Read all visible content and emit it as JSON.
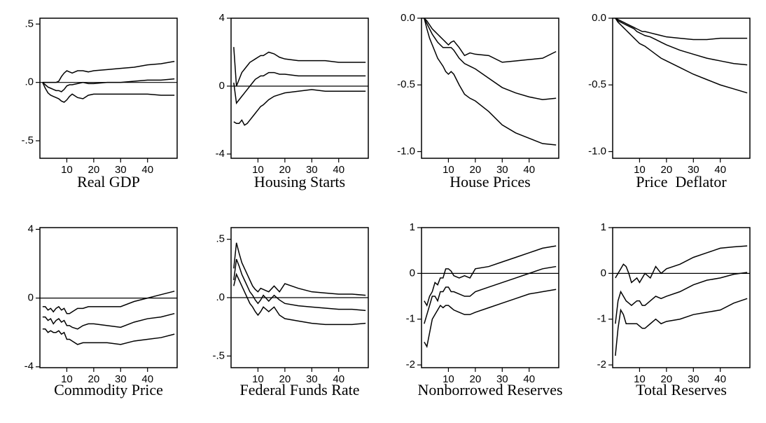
{
  "chart_data": [
    {
      "type": "line",
      "title": "Real GDP",
      "x": [
        1,
        2,
        3,
        4,
        5,
        6,
        7,
        8,
        9,
        10,
        11,
        12,
        14,
        16,
        18,
        20,
        25,
        30,
        35,
        40,
        45,
        50
      ],
      "xlim": [
        0,
        51
      ],
      "xticks": [
        10,
        20,
        30,
        40
      ],
      "ylim": [
        -0.65,
        0.55
      ],
      "yticks": [
        {
          "value": 0.5,
          "label": ".5"
        },
        {
          "value": 0,
          "label": ".0"
        },
        {
          "value": -0.5,
          "label": "-.5"
        }
      ],
      "zero_line": true,
      "series": [
        {
          "color": "#000000",
          "values": [
            0,
            0,
            0,
            0,
            0,
            0,
            0.01,
            0.05,
            0.08,
            0.1,
            0.09,
            0.08,
            0.1,
            0.1,
            0.09,
            0.1,
            0.11,
            0.12,
            0.13,
            0.15,
            0.16,
            0.18
          ]
        },
        {
          "color": "#000000",
          "values": [
            0,
            -0.02,
            -0.04,
            -0.05,
            -0.06,
            -0.07,
            -0.07,
            -0.08,
            -0.06,
            -0.03,
            -0.02,
            -0.02,
            -0.01,
            0,
            -0.01,
            -0.01,
            0,
            0,
            0.01,
            0.02,
            0.02,
            0.03
          ]
        },
        {
          "color": "#000000",
          "values": [
            0,
            -0.05,
            -0.09,
            -0.11,
            -0.12,
            -0.13,
            -0.14,
            -0.16,
            -0.17,
            -0.15,
            -0.12,
            -0.1,
            -0.13,
            -0.14,
            -0.11,
            -0.1,
            -0.1,
            -0.1,
            -0.1,
            -0.1,
            -0.11,
            -0.11
          ]
        }
      ]
    },
    {
      "type": "line",
      "title": "Housing Starts",
      "x": [
        1,
        2,
        3,
        4,
        5,
        6,
        7,
        8,
        9,
        10,
        11,
        12,
        14,
        16,
        18,
        20,
        25,
        30,
        35,
        40,
        45,
        50
      ],
      "xlim": [
        0,
        51
      ],
      "xticks": [
        10,
        20,
        30,
        40
      ],
      "ylim": [
        -4.25,
        4
      ],
      "yticks": [
        4,
        0,
        -4
      ],
      "zero_line": true,
      "series": [
        {
          "color": "#000000",
          "values": [
            2.3,
            0,
            0.4,
            0.8,
            1.0,
            1.2,
            1.4,
            1.5,
            1.6,
            1.7,
            1.8,
            1.8,
            2.0,
            1.9,
            1.7,
            1.6,
            1.5,
            1.5,
            1.5,
            1.4,
            1.4,
            1.4
          ]
        },
        {
          "color": "#000000",
          "values": [
            0.2,
            -1,
            -0.8,
            -0.6,
            -0.4,
            -0.2,
            0,
            0.2,
            0.4,
            0.5,
            0.6,
            0.6,
            0.8,
            0.8,
            0.7,
            0.7,
            0.6,
            0.6,
            0.6,
            0.6,
            0.6,
            0.6
          ]
        },
        {
          "color": "#000000",
          "values": [
            -2.1,
            -2.2,
            -2.2,
            -2.0,
            -2.3,
            -2.2,
            -2.0,
            -1.8,
            -1.6,
            -1.4,
            -1.2,
            -1.1,
            -0.8,
            -0.6,
            -0.5,
            -0.4,
            -0.3,
            -0.2,
            -0.3,
            -0.3,
            -0.3,
            -0.3
          ]
        }
      ]
    },
    {
      "type": "line",
      "title": "House Prices",
      "x": [
        1,
        2,
        3,
        4,
        5,
        6,
        7,
        8,
        9,
        10,
        11,
        12,
        14,
        16,
        18,
        20,
        25,
        30,
        35,
        40,
        45,
        50
      ],
      "xlim": [
        0,
        51
      ],
      "xticks": [
        10,
        20,
        30,
        40
      ],
      "ylim": [
        -1.05,
        0
      ],
      "yticks": [
        {
          "value": 0,
          "label": "0.0"
        },
        -0.5,
        {
          "value": -1,
          "label": "-1.0"
        }
      ],
      "zero_line": false,
      "series": [
        {
          "color": "#000000",
          "values": [
            0,
            -0.02,
            -0.05,
            -0.08,
            -0.1,
            -0.12,
            -0.14,
            -0.16,
            -0.18,
            -0.2,
            -0.18,
            -0.17,
            -0.22,
            -0.28,
            -0.26,
            -0.27,
            -0.28,
            -0.33,
            -0.32,
            -0.31,
            -0.3,
            -0.25
          ]
        },
        {
          "color": "#000000",
          "values": [
            0,
            -0.04,
            -0.08,
            -0.12,
            -0.15,
            -0.18,
            -0.2,
            -0.22,
            -0.22,
            -0.22,
            -0.22,
            -0.24,
            -0.3,
            -0.34,
            -0.36,
            -0.38,
            -0.45,
            -0.52,
            -0.56,
            -0.59,
            -0.61,
            -0.6
          ]
        },
        {
          "color": "#000000",
          "values": [
            0,
            -0.08,
            -0.15,
            -0.2,
            -0.25,
            -0.3,
            -0.33,
            -0.36,
            -0.4,
            -0.42,
            -0.4,
            -0.42,
            -0.5,
            -0.57,
            -0.6,
            -0.62,
            -0.7,
            -0.8,
            -0.86,
            -0.9,
            -0.94,
            -0.95
          ]
        }
      ]
    },
    {
      "type": "line",
      "title": "Price  Deflator",
      "x": [
        1,
        2,
        3,
        4,
        5,
        6,
        7,
        8,
        9,
        10,
        11,
        12,
        14,
        16,
        18,
        20,
        25,
        30,
        35,
        40,
        45,
        50
      ],
      "xlim": [
        0,
        51
      ],
      "xticks": [
        10,
        20,
        30,
        40
      ],
      "ylim": [
        -1.05,
        0
      ],
      "yticks": [
        {
          "value": 0,
          "label": "0.0"
        },
        -0.5,
        {
          "value": -1,
          "label": "-1.0"
        }
      ],
      "zero_line": false,
      "series": [
        {
          "color": "#000000",
          "values": [
            0,
            -0.01,
            -0.02,
            -0.03,
            -0.04,
            -0.05,
            -0.06,
            -0.07,
            -0.08,
            -0.09,
            -0.1,
            -0.1,
            -0.11,
            -0.12,
            -0.13,
            -0.14,
            -0.15,
            -0.16,
            -0.16,
            -0.15,
            -0.15,
            -0.15
          ]
        },
        {
          "color": "#000000",
          "values": [
            0,
            -0.02,
            -0.03,
            -0.04,
            -0.05,
            -0.06,
            -0.07,
            -0.08,
            -0.1,
            -0.11,
            -0.12,
            -0.13,
            -0.14,
            -0.16,
            -0.18,
            -0.2,
            -0.24,
            -0.27,
            -0.3,
            -0.32,
            -0.34,
            -0.35
          ]
        },
        {
          "color": "#000000",
          "values": [
            0,
            -0.03,
            -0.05,
            -0.07,
            -0.09,
            -0.11,
            -0.13,
            -0.15,
            -0.17,
            -0.19,
            -0.2,
            -0.21,
            -0.24,
            -0.27,
            -0.3,
            -0.32,
            -0.37,
            -0.42,
            -0.46,
            -0.5,
            -0.53,
            -0.56
          ]
        }
      ]
    },
    {
      "type": "line",
      "title": "Commodity Price",
      "x": [
        1,
        2,
        3,
        4,
        5,
        6,
        7,
        8,
        9,
        10,
        11,
        12,
        14,
        16,
        18,
        20,
        25,
        30,
        35,
        40,
        45,
        50
      ],
      "xlim": [
        0,
        51
      ],
      "xticks": [
        10,
        20,
        30,
        40
      ],
      "ylim": [
        -4.05,
        4.1
      ],
      "yticks": [
        4,
        0,
        -4
      ],
      "zero_line": true,
      "series": [
        {
          "color": "#000000",
          "values": [
            -0.5,
            -0.5,
            -0.7,
            -0.6,
            -0.8,
            -0.6,
            -0.5,
            -0.7,
            -0.6,
            -0.9,
            -0.9,
            -0.8,
            -0.6,
            -0.6,
            -0.5,
            -0.5,
            -0.5,
            -0.5,
            -0.2,
            0,
            0.2,
            0.4
          ]
        },
        {
          "color": "#000000",
          "values": [
            -1.1,
            -1.1,
            -1.3,
            -1.2,
            -1.5,
            -1.3,
            -1.2,
            -1.4,
            -1.3,
            -1.6,
            -1.6,
            -1.7,
            -1.8,
            -1.6,
            -1.5,
            -1.5,
            -1.6,
            -1.7,
            -1.4,
            -1.2,
            -1.1,
            -0.9
          ]
        },
        {
          "color": "#000000",
          "values": [
            -1.8,
            -1.8,
            -2.0,
            -1.9,
            -2.0,
            -2.0,
            -1.9,
            -2.1,
            -2.0,
            -2.4,
            -2.4,
            -2.5,
            -2.7,
            -2.6,
            -2.6,
            -2.6,
            -2.6,
            -2.7,
            -2.5,
            -2.4,
            -2.3,
            -2.1
          ]
        }
      ]
    },
    {
      "type": "line",
      "title": "Federal Funds Rate",
      "x": [
        1,
        2,
        3,
        4,
        5,
        6,
        7,
        8,
        9,
        10,
        11,
        12,
        14,
        16,
        18,
        20,
        25,
        30,
        35,
        40,
        45,
        50
      ],
      "xlim": [
        0,
        51
      ],
      "xticks": [
        10,
        20,
        30,
        40
      ],
      "ylim": [
        -0.6,
        0.6
      ],
      "yticks": [
        {
          "value": 0.5,
          "label": ".5"
        },
        {
          "value": 0,
          "label": ".0"
        },
        {
          "value": -0.5,
          "label": "-.5"
        }
      ],
      "zero_line": true,
      "series": [
        {
          "color": "#000000",
          "values": [
            0.25,
            0.47,
            0.38,
            0.3,
            0.25,
            0.2,
            0.15,
            0.1,
            0.07,
            0.05,
            0.08,
            0.07,
            0.05,
            0.1,
            0.05,
            0.12,
            0.08,
            0.05,
            0.04,
            0.03,
            0.03,
            0.02
          ]
        },
        {
          "color": "#000000",
          "values": [
            0.15,
            0.33,
            0.27,
            0.2,
            0.15,
            0.1,
            0.05,
            0.02,
            -0.02,
            -0.05,
            -0.02,
            0.02,
            -0.03,
            0.02,
            -0.02,
            -0.05,
            -0.07,
            -0.08,
            -0.09,
            -0.1,
            -0.1,
            -0.11
          ]
        },
        {
          "color": "#000000",
          "values": [
            0.1,
            0.2,
            0.15,
            0.1,
            0.05,
            0,
            -0.05,
            -0.08,
            -0.12,
            -0.15,
            -0.12,
            -0.08,
            -0.12,
            -0.08,
            -0.15,
            -0.18,
            -0.2,
            -0.22,
            -0.23,
            -0.23,
            -0.23,
            -0.22
          ]
        }
      ]
    },
    {
      "type": "line",
      "title": "Nonborrowed Reserves",
      "x": [
        1,
        2,
        3,
        4,
        5,
        6,
        7,
        8,
        9,
        10,
        11,
        12,
        14,
        16,
        18,
        20,
        25,
        30,
        35,
        40,
        45,
        50
      ],
      "xlim": [
        0,
        51
      ],
      "xticks": [
        10,
        20,
        30,
        40
      ],
      "ylim": [
        -2.06,
        1
      ],
      "yticks": [
        1,
        0,
        -1,
        -2
      ],
      "zero_line": true,
      "series": [
        {
          "color": "#000000",
          "values": [
            -0.6,
            -0.7,
            -0.5,
            -0.4,
            -0.2,
            -0.25,
            -0.1,
            -0.1,
            0.1,
            0.1,
            0.05,
            -0.05,
            -0.1,
            -0.05,
            -0.1,
            0.1,
            0.15,
            0.25,
            0.35,
            0.45,
            0.55,
            0.6
          ]
        },
        {
          "color": "#000000",
          "values": [
            -1.1,
            -0.9,
            -0.7,
            -0.5,
            -0.5,
            -0.6,
            -0.4,
            -0.4,
            -0.3,
            -0.3,
            -0.4,
            -0.4,
            -0.45,
            -0.5,
            -0.5,
            -0.4,
            -0.3,
            -0.2,
            -0.1,
            0,
            0.1,
            0.15
          ]
        },
        {
          "color": "#000000",
          "values": [
            -1.5,
            -1.6,
            -1.3,
            -1.0,
            -0.9,
            -0.8,
            -0.7,
            -0.75,
            -0.7,
            -0.7,
            -0.75,
            -0.8,
            -0.85,
            -0.9,
            -0.9,
            -0.85,
            -0.75,
            -0.65,
            -0.55,
            -0.45,
            -0.4,
            -0.35
          ]
        }
      ]
    },
    {
      "type": "line",
      "title": "Total Reserves",
      "x": [
        1,
        2,
        3,
        4,
        5,
        6,
        7,
        8,
        9,
        10,
        11,
        12,
        14,
        16,
        18,
        20,
        25,
        30,
        35,
        40,
        45,
        50
      ],
      "xlim": [
        0,
        51
      ],
      "xticks": [
        10,
        20,
        30,
        40
      ],
      "ylim": [
        -2.06,
        1
      ],
      "yticks": [
        1,
        0,
        -1,
        -2
      ],
      "zero_line": true,
      "series": [
        {
          "color": "#000000",
          "values": [
            -0.1,
            0,
            0.1,
            0.2,
            0.15,
            0,
            -0.2,
            -0.15,
            -0.1,
            -0.2,
            -0.1,
            0,
            -0.1,
            0.15,
            0,
            0.1,
            0.2,
            0.35,
            0.45,
            0.55,
            0.58,
            0.6
          ]
        },
        {
          "color": "#000000",
          "values": [
            -1.1,
            -0.6,
            -0.4,
            -0.5,
            -0.6,
            -0.65,
            -0.7,
            -0.65,
            -0.6,
            -0.6,
            -0.7,
            -0.7,
            -0.6,
            -0.5,
            -0.55,
            -0.5,
            -0.4,
            -0.25,
            -0.15,
            -0.1,
            -0.02,
            0.02
          ]
        },
        {
          "color": "#000000",
          "values": [
            -1.8,
            -1.2,
            -0.8,
            -0.9,
            -1.1,
            -1.1,
            -1.1,
            -1.1,
            -1.1,
            -1.15,
            -1.2,
            -1.2,
            -1.1,
            -1.0,
            -1.1,
            -1.05,
            -1.0,
            -0.9,
            -0.85,
            -0.8,
            -0.65,
            -0.55
          ]
        }
      ]
    }
  ]
}
